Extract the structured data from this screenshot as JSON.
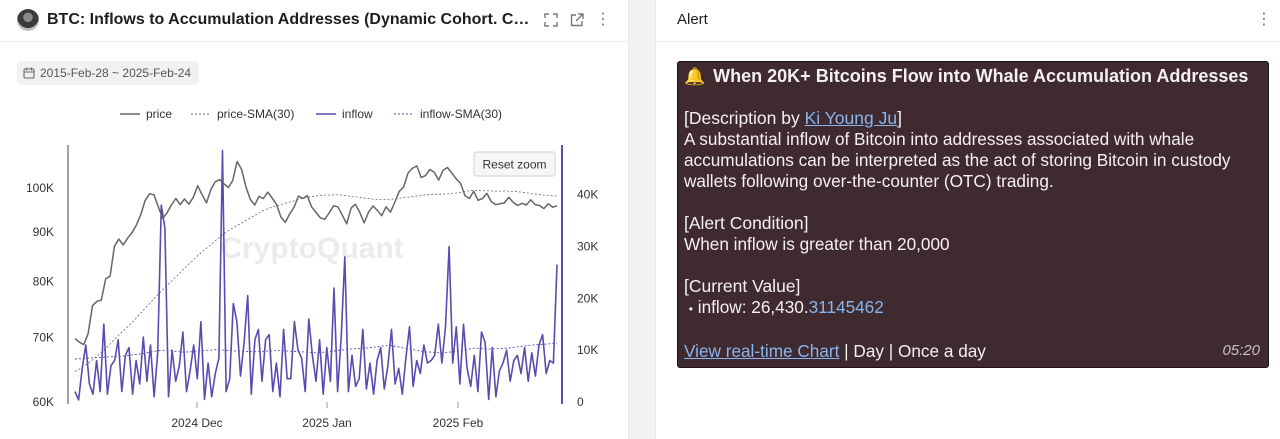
{
  "left_panel": {
    "title": "BTC: Inflows to Accumulation Addresses (Dynamic Cohort. Changes ...",
    "date_range": "2015-Feb-28 ~ 2025-Feb-24",
    "icons": [
      "avatar",
      "expand-icon",
      "external-link-icon",
      "more-vertical-icon",
      "calendar-icon"
    ]
  },
  "chart_data": {
    "type": "line",
    "watermark": "CryptoQuant",
    "reset_zoom_label": "Reset zoom",
    "legend_position": "top-center",
    "legend": [
      "price",
      "price-SMA(30)",
      "inflow",
      "inflow-SMA(30)"
    ],
    "x_tick_labels": [
      "2024 Dec",
      "2025 Jan",
      "2025 Feb"
    ],
    "y_left_tick_labels": [
      "100K",
      "90K",
      "80K",
      "70K",
      "60K"
    ],
    "y_left_scale": "log",
    "y_left_range": [
      60000,
      110000
    ],
    "y_right_tick_labels": [
      "40K",
      "30K",
      "20K",
      "10K",
      "0"
    ],
    "y_right_range": [
      0,
      49000
    ],
    "series_colors": {
      "price": "#666666",
      "price_sma": "#666666",
      "inflow": "#5a4bb0",
      "inflow_sma": "#5a4bb0"
    },
    "series": [
      {
        "name": "price",
        "axis": "left",
        "values": [
          69800,
          69200,
          68800,
          70600,
          75500,
          76300,
          76500,
          80500,
          81000,
          87000,
          88500,
          87300,
          88700,
          89900,
          91500,
          93800,
          97000,
          98600,
          98400,
          95600,
          93000,
          94200,
          96000,
          97500,
          96100,
          97400,
          96200,
          97800,
          100500,
          98400,
          96500,
          99600,
          101500,
          102000,
          101000,
          100100,
          101800,
          106500,
          104600,
          100300,
          97300,
          96000,
          98000,
          97500,
          99000,
          97600,
          96100,
          93300,
          92100,
          94000,
          95500,
          98100,
          97500,
          98200,
          95600,
          94300,
          93100,
          92800,
          94200,
          95800,
          95600,
          93700,
          91800,
          95300,
          96200,
          94300,
          92000,
          94400,
          95800,
          94800,
          93600,
          95600,
          94400,
          96700,
          99200,
          100200,
          103600,
          104800,
          105400,
          102500,
          103000,
          104500,
          103800,
          101900,
          104300,
          105000,
          103600,
          102200,
          101100,
          98200,
          97500,
          99200,
          97100,
          97500,
          98700,
          96800,
          96100,
          96300,
          96500,
          97800,
          96600,
          95900,
          96400,
          96000,
          97200,
          96100,
          95900,
          95200,
          96300,
          95500,
          95800
        ]
      },
      {
        "name": "price-SMA(30)",
        "axis": "left",
        "values": [
          64500,
          65100,
          65800,
          66600,
          67500,
          68500,
          69600,
          70700,
          71700,
          72800,
          74100,
          75300,
          76600,
          77900,
          79100,
          80300,
          81500,
          82800,
          84000,
          85300,
          86400,
          87500,
          88700,
          89800,
          90700,
          91500,
          92300,
          93200,
          94000,
          94800,
          95400,
          95800,
          96300,
          96700,
          97100,
          97600,
          97900,
          98100,
          98300,
          98300,
          98400,
          98300,
          98100,
          97900,
          97700,
          97500,
          97300,
          97300,
          97300,
          97400,
          97600,
          97800,
          98000,
          98200,
          98400,
          98500,
          98500,
          98600,
          98700,
          98900,
          99200,
          99400,
          99400,
          99300,
          99300,
          99200,
          99300,
          99200,
          99100,
          98900,
          98700,
          98500,
          98300,
          98200,
          98100
        ]
      },
      {
        "name": "inflow",
        "axis": "right",
        "values": [
          2000,
          400,
          6500,
          11000,
          3500,
          1500,
          8000,
          2000,
          15000,
          1500,
          7000,
          8000,
          12000,
          2000,
          9000,
          10500,
          1500,
          8000,
          3500,
          12500,
          4000,
          11000,
          1000,
          9500,
          38000,
          33500,
          1000,
          10000,
          4000,
          7000,
          13500,
          2000,
          6000,
          11000,
          4500,
          15500,
          500,
          7500,
          1000,
          5500,
          8500,
          48500,
          2000,
          4500,
          19000,
          15500,
          5000,
          11500,
          20500,
          1500,
          12000,
          14000,
          4000,
          12000,
          13000,
          2000,
          7500,
          1000,
          14000,
          4500,
          4500,
          15500,
          10000,
          8500,
          2000,
          16000,
          9000,
          4000,
          12000,
          1500,
          10500,
          4000,
          22000,
          2000,
          12500,
          28000,
          2000,
          9000,
          3000,
          4500,
          14000,
          2500,
          7500,
          1500,
          8000,
          10500,
          2500,
          7000,
          14000,
          3500,
          6500,
          1500,
          8500,
          14500,
          3000,
          8000,
          5500,
          11000,
          7500,
          8000,
          9000,
          15000,
          7500,
          14500,
          30000,
          7500,
          14500,
          3500,
          15000,
          6500,
          3000,
          9000,
          2000,
          13500,
          11500,
          500,
          10500,
          1000,
          6000,
          7500,
          10000,
          4000,
          8000,
          9000,
          5500,
          10500,
          4000,
          9500,
          5000,
          11000,
          13000,
          5500,
          8000,
          7500,
          26500
        ]
      },
      {
        "name": "inflow-SMA(30)",
        "axis": "right",
        "values": [
          8300,
          8400,
          8500,
          8600,
          8700,
          8800,
          8900,
          9100,
          9300,
          9600,
          9900,
          10000,
          9800,
          9600,
          9700,
          9900,
          10000,
          10100,
          10000,
          9900,
          9800,
          9700,
          9700,
          9800,
          9900,
          9900,
          9800,
          9700,
          9600,
          9500,
          9600,
          9800,
          10000,
          10200,
          10300,
          10400,
          10600,
          10800,
          10900,
          10600,
          10300,
          10000,
          9700,
          9600,
          9500,
          9600,
          9800,
          10100,
          10400,
          10300,
          10200,
          10300,
          10400,
          10600,
          10800,
          11000,
          11100,
          11200,
          11400
        ]
      }
    ]
  },
  "right_panel": {
    "title": "Alert",
    "icons": [
      "more-vertical-icon",
      "bell-icon"
    ],
    "alert": {
      "bell": "🔔",
      "heading": "When 20K+ Bitcoins Flow into Whale Accumulation Addresses",
      "description_prefix": "[Description by ",
      "author": "Ki Young Ju",
      "description_suffix": "]",
      "description_body": "A substantial inflow of Bitcoin into addresses associated with whale accumulations can be interpreted as the act of storing Bitcoin in custody wallets following over-the-counter (OTC) trading.",
      "condition_header": "[Alert Condition]",
      "condition_body": "When inflow is greater than 20,000",
      "value_header": "[Current Value]",
      "value_bullet": "•",
      "value_label": "inflow: 26,430.",
      "value_decimal": "31145462",
      "chart_link": "View real-time Chart",
      "separator": " | ",
      "period": "Day",
      "frequency": "Once a day",
      "time": "05:20"
    }
  }
}
